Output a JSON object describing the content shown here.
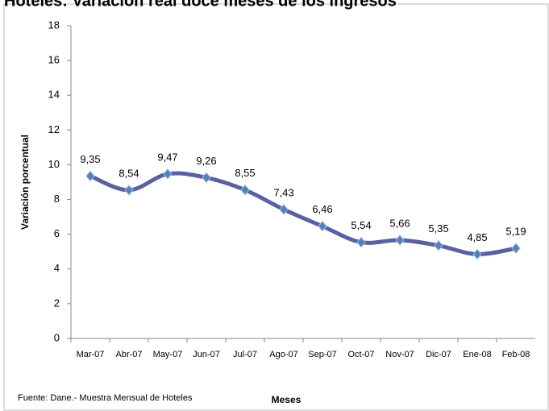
{
  "chart_data": {
    "type": "line",
    "title": "Hoteles: Variación real doce meses de los ingresos",
    "y_label": "Variación porcentual",
    "x_label": "Meses",
    "source": "Fuente: Dane.- Muestra Mensual de Hoteles",
    "categories": [
      "Mar-07",
      "Abr-07",
      "May-07",
      "Jun-07",
      "Jul-07",
      "Ago-07",
      "Sep-07",
      "Oct-07",
      "Nov-07",
      "Dic-07",
      "Ene-08",
      "Feb-08"
    ],
    "values": [
      9.35,
      8.54,
      9.47,
      9.26,
      8.55,
      7.43,
      6.46,
      5.54,
      5.66,
      5.35,
      4.85,
      5.19
    ],
    "value_labels": [
      "9,35",
      "8,54",
      "9,47",
      "9,26",
      "8,55",
      "7,43",
      "6,46",
      "5,54",
      "5,66",
      "5,35",
      "4,85",
      "5,19"
    ],
    "color": "#5b5fa8",
    "marker_color": "#4f81bd",
    "ylim": [
      0,
      18
    ],
    "yticks": [
      0,
      2,
      4,
      6,
      8,
      10,
      12,
      14,
      16,
      18
    ]
  }
}
